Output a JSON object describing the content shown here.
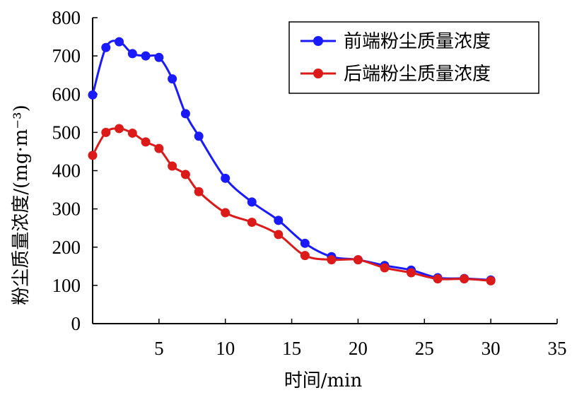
{
  "chart_data": {
    "type": "line",
    "title": "",
    "xlabel": "时间/min",
    "ylabel": "粉尘质量浓度/(mg·m⁻³)",
    "xlim": [
      0,
      35
    ],
    "ylim": [
      0,
      800
    ],
    "xticks": [
      5,
      10,
      15,
      20,
      25,
      30,
      35
    ],
    "yticks": [
      0,
      100,
      200,
      300,
      400,
      500,
      600,
      700,
      800
    ],
    "grid": false,
    "legend_position": "top-right",
    "series": [
      {
        "name": "前端粉尘质量浓度",
        "color": "#1a1aff",
        "x": [
          0,
          1,
          2,
          3,
          4,
          5,
          6,
          7,
          8,
          10,
          12,
          14,
          16,
          18,
          20,
          22,
          24,
          26,
          28,
          30
        ],
        "values": [
          598,
          722,
          737,
          706,
          700,
          696,
          640,
          549,
          490,
          380,
          318,
          270,
          210,
          175,
          167,
          152,
          140,
          120,
          118,
          114
        ]
      },
      {
        "name": "后端粉尘质量浓度",
        "color": "#dd1a1a",
        "x": [
          0,
          1,
          2,
          3,
          4,
          5,
          6,
          7,
          8,
          10,
          12,
          14,
          16,
          18,
          20,
          22,
          24,
          26,
          28,
          30
        ],
        "values": [
          440,
          500,
          510,
          498,
          475,
          458,
          412,
          390,
          345,
          290,
          265,
          233,
          178,
          167,
          167,
          146,
          133,
          117,
          117,
          112
        ]
      }
    ]
  }
}
